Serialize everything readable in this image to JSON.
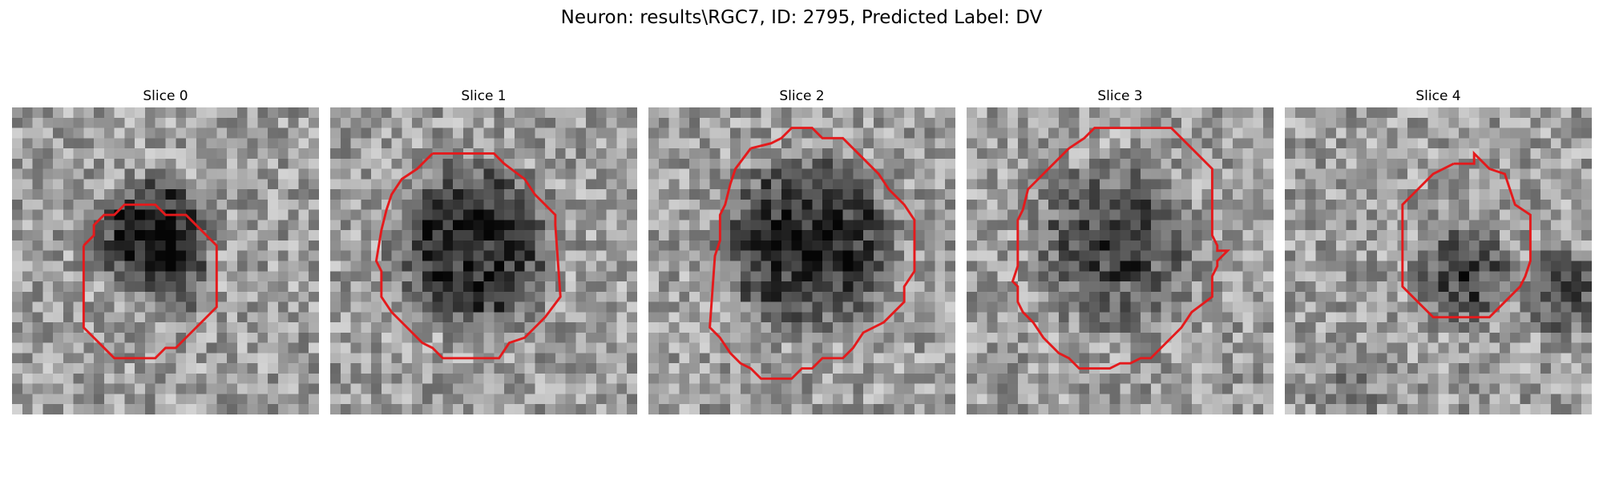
{
  "figure": {
    "title": "Neuron: results\\RGC7, ID: 2795, Predicted Label: DV"
  },
  "outline_color": "#e41a1c",
  "slices": [
    {
      "title": "Slice 0"
    },
    {
      "title": "Slice 1"
    },
    {
      "title": "Slice 2"
    },
    {
      "title": "Slice 3"
    },
    {
      "title": "Slice 4"
    }
  ]
}
